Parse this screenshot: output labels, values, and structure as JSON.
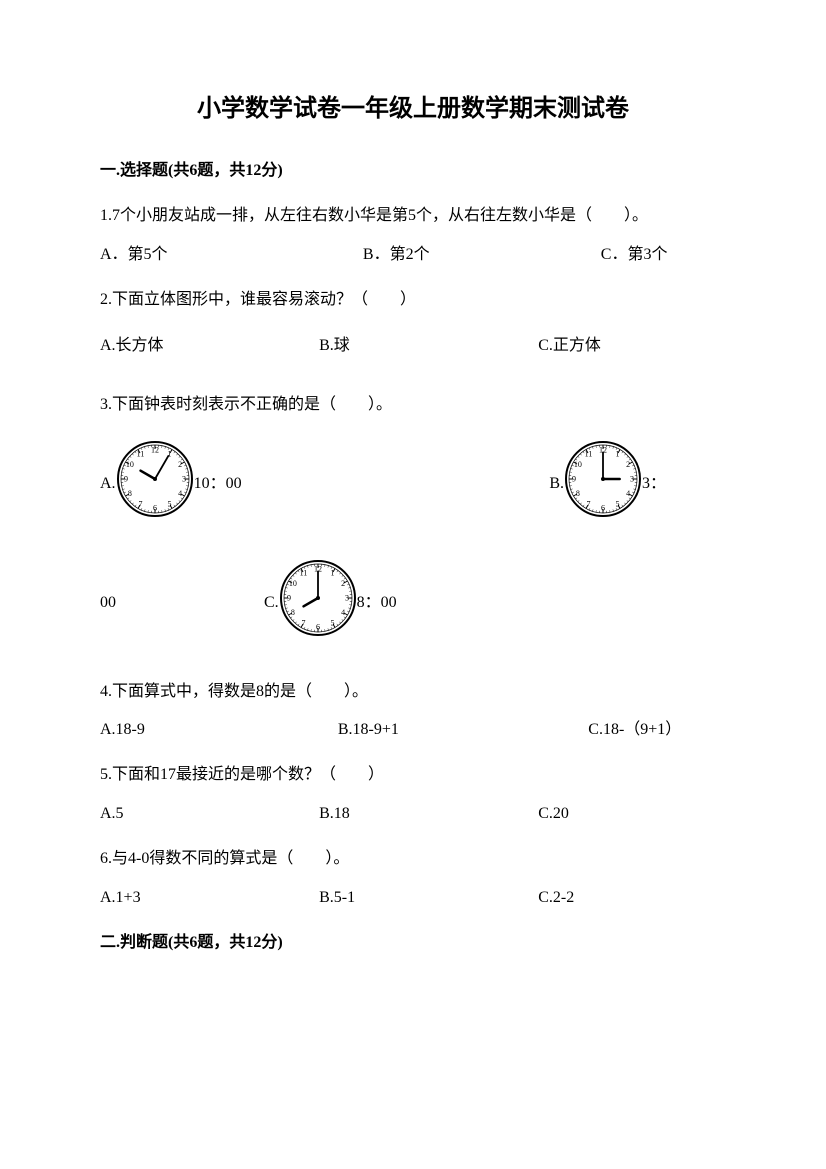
{
  "title": "小学数学试卷一年级上册数学期末测试卷",
  "section1": {
    "header": "一.选择题(共6题，共12分)"
  },
  "q1": {
    "text": "1.7个小朋友站成一排，从左往右数小华是第5个，从右往左数小华是（　　）。",
    "optA": "A．第5个",
    "optB": "B．第2个",
    "optC": "C．第3个"
  },
  "q2": {
    "text": "2.下面立体图形中，谁最容易滚动？（　　）",
    "optA": "A.长方体",
    "optB": "B.球",
    "optC": "C.正方体"
  },
  "q3": {
    "text": "3.下面钟表时刻表示不正确的是（　　）。",
    "labelA": "A.",
    "timeA": "10：00",
    "labelB": "B.",
    "timeB": "3：",
    "timeB_cont": "00",
    "labelC": "C.",
    "timeC": "8：00",
    "clockA": {
      "hourAngle": 300,
      "minuteAngle": 30
    },
    "clockB": {
      "hourAngle": 90,
      "minuteAngle": 0
    },
    "clockC": {
      "hourAngle": 240,
      "minuteAngle": 0
    }
  },
  "q4": {
    "text": "4.下面算式中，得数是8的是（　　）。",
    "optA": "A.18-9",
    "optB": "B.18-9+1",
    "optC": "C.18-（9+1）"
  },
  "q5": {
    "text": "5.下面和17最接近的是哪个数？（　　）",
    "optA": "A.5",
    "optB": "B.18",
    "optC": "C.20"
  },
  "q6": {
    "text": "6.与4-0得数不同的算式是（　　）。",
    "optA": "A.1+3",
    "optB": "B.5-1",
    "optC": "C.2-2"
  },
  "section2": {
    "header": "二.判断题(共6题，共12分)"
  },
  "clockStyle": {
    "size": 78,
    "strokeColor": "#000000",
    "faceColor": "#ffffff",
    "numberFontSize": 8
  }
}
